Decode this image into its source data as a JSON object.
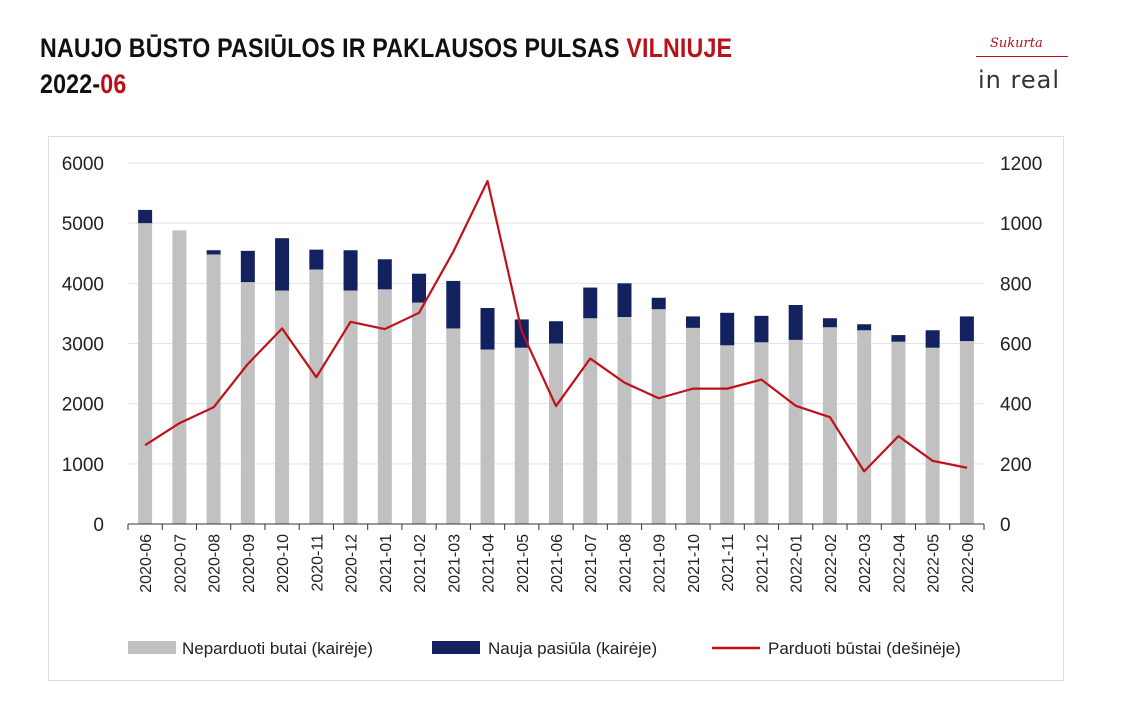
{
  "header": {
    "title_main": "NAUJO BŪSTO PASIŪLOS IR PAKLAUSOS PULSAS ",
    "title_accent": "VILNIUJE",
    "date_main": "2022-",
    "date_accent": "06"
  },
  "logo": {
    "sub_text": "Sukurta",
    "main_text": "in real"
  },
  "colors": {
    "unsold": "#c1c1c1",
    "new_supply": "#14215f",
    "sold": "#c0101a",
    "accent": "#b5121b"
  },
  "chart_data": {
    "type": "bar",
    "stacked": true,
    "categories": [
      "2020-06",
      "2020-07",
      "2020-08",
      "2020-09",
      "2020-10",
      "2020-11",
      "2020-12",
      "2021-01",
      "2021-02",
      "2021-03",
      "2021-04",
      "2021-05",
      "2021-06",
      "2021-07",
      "2021-08",
      "2021-09",
      "2021-10",
      "2021-11",
      "2021-12",
      "2022-01",
      "2022-02",
      "2022-03",
      "2022-04",
      "2022-05",
      "2022-06"
    ],
    "series": [
      {
        "name": "Neparduoti butai (kairėje)",
        "type": "bar",
        "axis": "left",
        "values": [
          5000,
          4880,
          4480,
          4020,
          3880,
          4230,
          3880,
          3900,
          3680,
          3250,
          2900,
          2930,
          3000,
          3420,
          3440,
          3570,
          3260,
          2970,
          3020,
          3060,
          3270,
          3220,
          3030,
          2930,
          3040
        ]
      },
      {
        "name": "Nauja pasiūla (kairėje)",
        "type": "bar",
        "axis": "left",
        "values": [
          220,
          0,
          70,
          520,
          870,
          330,
          670,
          500,
          480,
          790,
          690,
          470,
          370,
          510,
          560,
          190,
          190,
          540,
          440,
          580,
          150,
          100,
          110,
          290,
          410
        ]
      },
      {
        "name": "Parduoti būstai (dešinėje)",
        "type": "line",
        "axis": "right",
        "values": [
          262,
          335,
          388,
          532,
          650,
          488,
          672,
          648,
          702,
          905,
          1140,
          640,
          392,
          550,
          470,
          418,
          450,
          450,
          480,
          393,
          355,
          175,
          292,
          210,
          187
        ]
      }
    ],
    "y_left": {
      "min": 0,
      "max": 6000,
      "ticks": [
        0,
        1000,
        2000,
        3000,
        4000,
        5000,
        6000
      ]
    },
    "y_right": {
      "min": 0,
      "max": 1200,
      "ticks": [
        0,
        200,
        400,
        600,
        800,
        1000,
        1200
      ]
    },
    "grid": true,
    "legend_position": "bottom"
  }
}
